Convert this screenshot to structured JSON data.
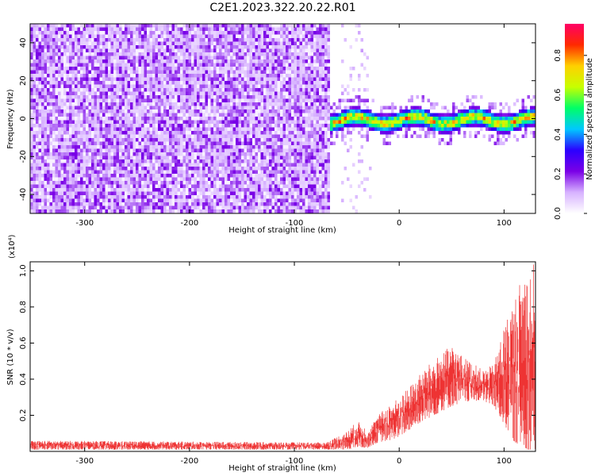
{
  "title": "C2E1.2023.322.20.22.R01",
  "chart_data": [
    {
      "type": "heatmap",
      "xlabel": "Height of straight line (km)",
      "ylabel": "Frequency (Hz)",
      "xlim": [
        -352,
        130
      ],
      "ylim": [
        -50,
        50
      ],
      "x_ticks": [
        "-300",
        "-200",
        "-100",
        "0",
        "100"
      ],
      "y_ticks": [
        "-40",
        "-20",
        "0",
        "20",
        "40"
      ],
      "noise_region_x": [
        -352,
        -67
      ],
      "signal_band": {
        "x": [
          -67,
          130
        ],
        "center_hz": 0,
        "half_width_hz": 5
      },
      "colorbar": {
        "label": "Normalized spectral amplitude",
        "range": [
          0,
          0.96
        ],
        "ticks": [
          "0.0",
          "0.2",
          "0.4",
          "0.6",
          "0.8"
        ],
        "colormap": [
          "#ffffff",
          "#d7b2ff",
          "#7a00e6",
          "#2b00ff",
          "#00c8ff",
          "#00ff66",
          "#c8ff00",
          "#ffd000",
          "#ff2a00",
          "#ff0066"
        ]
      }
    },
    {
      "type": "line",
      "xlabel": "Height of straight line (km)",
      "ylabel": "SNR (10 * v/v)",
      "y_multiplier": "(x10⁴)",
      "xlim": [
        -352,
        130
      ],
      "ylim": [
        0,
        1.05
      ],
      "x_ticks": [
        "-300",
        "-200",
        "-100",
        "0",
        "100"
      ],
      "y_ticks": [
        "0.2",
        "0.4",
        "0.6",
        "0.8",
        "1.0"
      ],
      "color": "#ee3333",
      "envelope": {
        "x": [
          -352,
          -70,
          -60,
          -50,
          -40,
          -30,
          -20,
          -10,
          0,
          10,
          20,
          30,
          40,
          50,
          60,
          70,
          80,
          90,
          100,
          110,
          120,
          130
        ],
        "y_min": [
          0.01,
          0.01,
          0.01,
          0.01,
          0.02,
          0.02,
          0.05,
          0.06,
          0.08,
          0.12,
          0.16,
          0.19,
          0.22,
          0.25,
          0.27,
          0.28,
          0.28,
          0.25,
          0.15,
          0.05,
          0.01,
          0.01
        ],
        "y_max": [
          0.06,
          0.05,
          0.08,
          0.11,
          0.17,
          0.12,
          0.2,
          0.26,
          0.3,
          0.36,
          0.43,
          0.49,
          0.54,
          0.59,
          0.53,
          0.49,
          0.45,
          0.48,
          0.7,
          0.85,
          1.03,
          1.05
        ]
      }
    }
  ]
}
